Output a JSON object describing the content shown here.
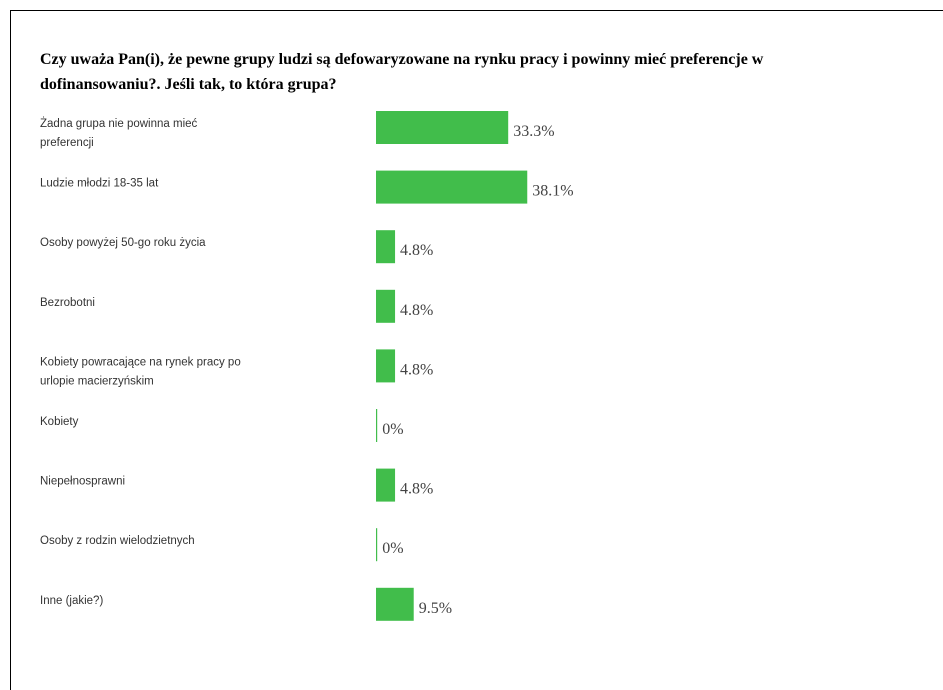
{
  "page": {
    "title": "Czy uważa Pan(i), że pewne grupy ludzi są defowaryzowane na rynku pracy i powinny mieć preferencje w\ndofinansowaniu?. Jeśli tak, to która grupa?"
  },
  "colors": {
    "bar": "#41bd4b",
    "text": "#333333"
  },
  "chart_data": {
    "type": "bar",
    "orientation": "horizontal",
    "categories": [
      "Żadna grupa nie powinna mieć\npreferencji",
      "Ludzie młodzi 18-35 lat",
      "Osoby powyżej 50-go roku życia",
      "Bezrobotni",
      "Kobiety powracające na rynek pracy po\nurlopie macierzyńskim",
      "Kobiety",
      "Niepełnosprawni",
      "Osoby z rodzin wielodzietnych",
      "Inne (jakie?)"
    ],
    "values": [
      33.3,
      38.1,
      4.8,
      4.8,
      4.8,
      0,
      4.8,
      0,
      9.5
    ],
    "value_labels": [
      "33.3%",
      "38.1%",
      "4.8%",
      "4.8%",
      "4.8%",
      "0%",
      "4.8%",
      "0%",
      "9.5%"
    ],
    "unit": "%"
  }
}
